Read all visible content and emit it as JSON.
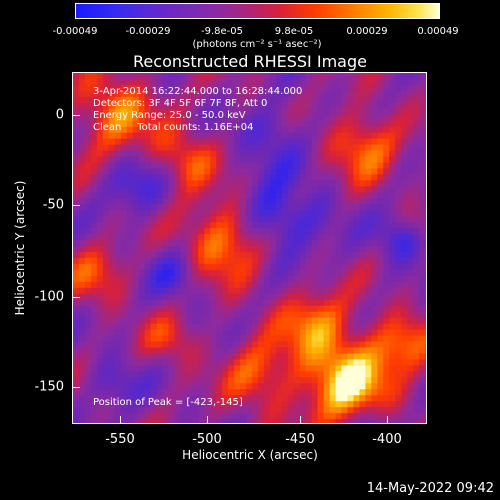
{
  "colorbar": {
    "ticks": [
      "-0.00049",
      "-0.00029",
      "-9.8e-05",
      "9.8e-05",
      "0.00029",
      "0.00049"
    ],
    "units": "(photons cm⁻² s⁻¹ asec⁻²)"
  },
  "title": "Reconstructed RHESSI Image",
  "info": {
    "line1": "3-Apr-2014 16:22:44.000 to 16:28:44.000",
    "line2": "Detectors: 3F 4F 5F 6F 7F 8F, Att 0",
    "line3": "Energy Range: 25.0 - 50.0 keV",
    "line4": "Clean     Total counts: 1.16E+04",
    "peak": "Position of Peak = [-423,-145]"
  },
  "axes": {
    "xlabel": "Heliocentric X (arcsec)",
    "ylabel": "Heliocentric Y (arcsec)",
    "xticks": [
      "-550",
      "-500",
      "-450",
      "-400"
    ],
    "yticks": [
      "0",
      "-50",
      "-100",
      "-150"
    ]
  },
  "timestamp": "14-May-2022 09:42",
  "colors": {
    "low": "#1a1aff",
    "mid": "#8a2aa8",
    "high": "#ff3c00",
    "peak": "#ffffd8"
  }
}
